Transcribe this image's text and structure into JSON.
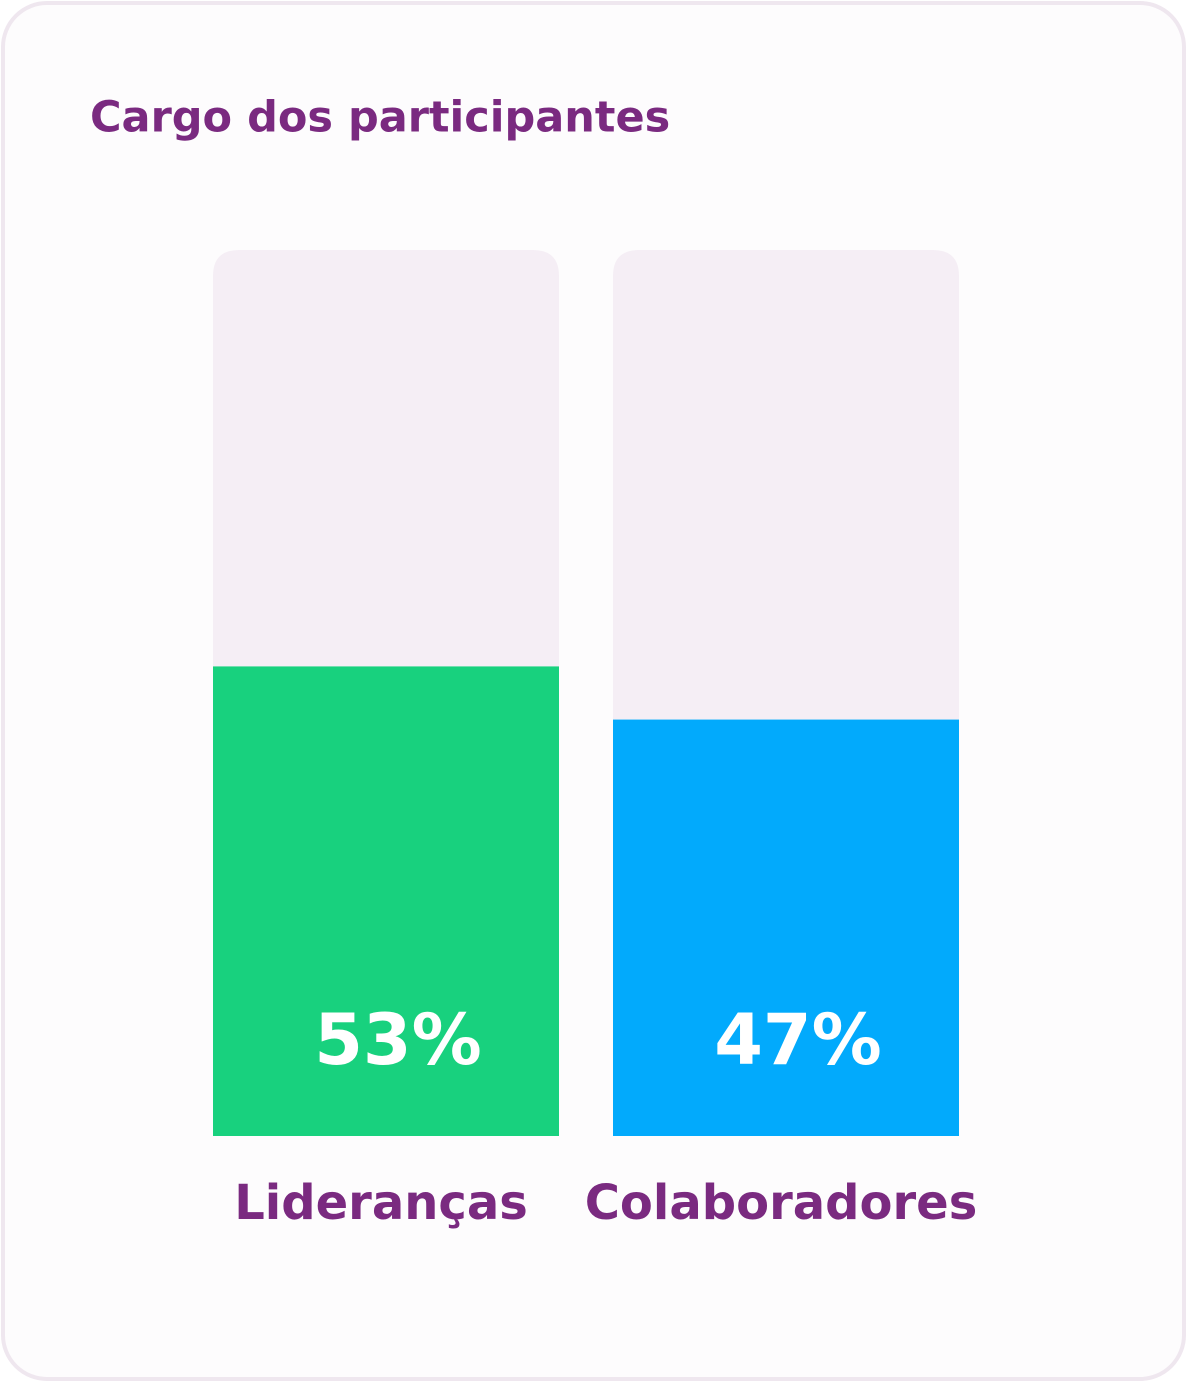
{
  "chart_data": {
    "type": "bar",
    "title": "Cargo dos participantes",
    "categories": [
      "Lideranças",
      "Colaboradores"
    ],
    "values": [
      53,
      47
    ],
    "value_labels": [
      "53%",
      "47%"
    ],
    "colors": [
      "#18d17e",
      "#02aafc"
    ],
    "ylim": [
      0,
      100
    ]
  }
}
